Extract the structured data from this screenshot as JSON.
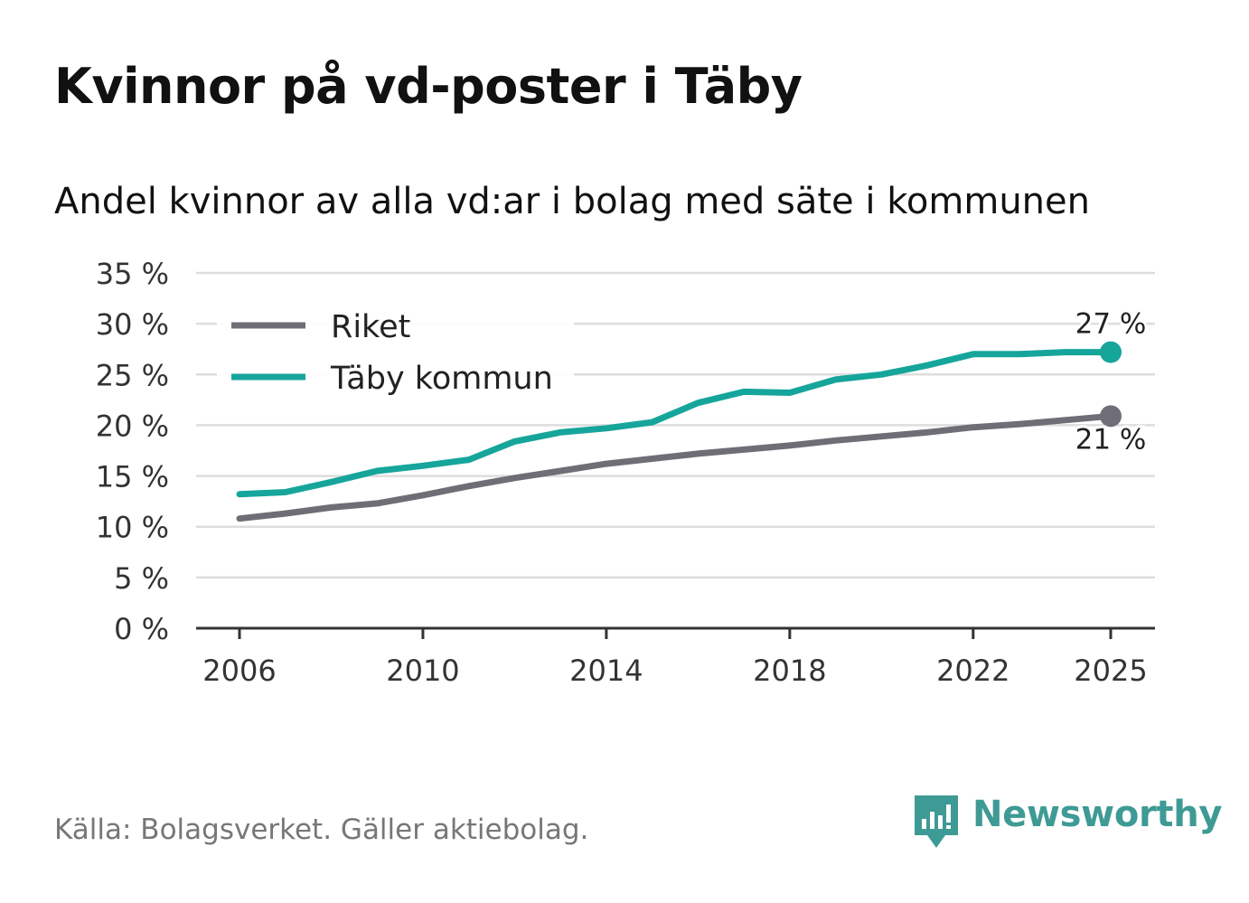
{
  "page": {
    "title": "Kvinnor på vd-poster i Täby",
    "subtitle": "Andel kvinnor av alla vd:ar i bolag med säte i kommunen",
    "source": "Källa: Bolagsverket. Gäller aktiebolag.",
    "brand": "Newsworthy",
    "brand_icon": "bar-chart-speech-bubble-icon",
    "brand_color": "#3e9a94"
  },
  "chart_data": {
    "type": "line",
    "title": "Kvinnor på vd-poster i Täby",
    "subtitle": "Andel kvinnor av alla vd:ar i bolag med säte i kommunen",
    "xlabel": "",
    "ylabel": "",
    "x": [
      2006,
      2007,
      2008,
      2009,
      2010,
      2011,
      2012,
      2013,
      2014,
      2015,
      2016,
      2017,
      2018,
      2019,
      2020,
      2021,
      2022,
      2023,
      2024,
      2025
    ],
    "xlim": [
      2005,
      2026
    ],
    "ylim": [
      0,
      35
    ],
    "x_ticks": [
      2006,
      2010,
      2014,
      2018,
      2022,
      2025
    ],
    "x_tick_labels": [
      "2006",
      "2010",
      "2014",
      "2018",
      "2022",
      "2025"
    ],
    "y_ticks": [
      0,
      5,
      10,
      15,
      20,
      25,
      30,
      35
    ],
    "y_tick_labels": [
      "0 %",
      "5 %",
      "10 %",
      "15 %",
      "20 %",
      "25 %",
      "30 %",
      "35 %"
    ],
    "grid": true,
    "legend_position": "top-left",
    "series": [
      {
        "name": "Riket",
        "color": "#6f6e76",
        "values": [
          10.8,
          11.3,
          11.9,
          12.3,
          13.1,
          14.0,
          14.8,
          15.5,
          16.2,
          16.7,
          17.2,
          17.6,
          18.0,
          18.5,
          18.9,
          19.3,
          19.8,
          20.1,
          20.5,
          20.9
        ],
        "end_label": "21 %",
        "end_label_position": "below"
      },
      {
        "name": "Täby kommun",
        "color": "#16a59b",
        "values": [
          13.2,
          13.4,
          14.4,
          15.5,
          16.0,
          16.6,
          18.4,
          19.3,
          19.7,
          20.3,
          22.2,
          23.3,
          23.2,
          24.5,
          25.0,
          25.9,
          27.0,
          27.0,
          27.2,
          27.2
        ],
        "end_label": "27 %",
        "end_label_position": "above"
      }
    ]
  }
}
